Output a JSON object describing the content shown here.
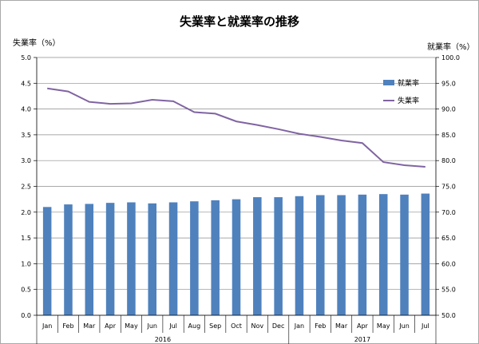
{
  "chart_data": {
    "type": "bar+line",
    "title": "失業率と就業率の推移",
    "left_axis_label": "失業率（%）",
    "right_axis_label": "就業率（%）",
    "categories": [
      "Jan",
      "Feb",
      "Mar",
      "Apr",
      "May",
      "Jun",
      "Jul",
      "Aug",
      "Sep",
      "Oct",
      "Nov",
      "Dec",
      "Jan",
      "Feb",
      "Mar",
      "Apr",
      "May",
      "Jun",
      "Jul"
    ],
    "year_groups": [
      {
        "label": "2016",
        "count": 12
      },
      {
        "label": "2017",
        "count": 7
      }
    ],
    "left_ylim": [
      0,
      5
    ],
    "left_yticks": [
      "0.0",
      "0.5",
      "1.0",
      "1.5",
      "2.0",
      "2.5",
      "3.0",
      "3.5",
      "4.0",
      "4.5",
      "5.0"
    ],
    "right_ylim": [
      50,
      100
    ],
    "right_yticks": [
      "50.0",
      "55.0",
      "60.0",
      "65.0",
      "70.0",
      "75.0",
      "80.0",
      "85.0",
      "90.0",
      "95.0",
      "100.0"
    ],
    "series": [
      {
        "name": "就業率",
        "type": "bar",
        "axis": "right",
        "color": "#4f81bd",
        "values": [
          71.0,
          71.5,
          71.6,
          71.8,
          71.9,
          71.7,
          71.9,
          72.1,
          72.3,
          72.5,
          72.9,
          72.9,
          73.1,
          73.3,
          73.3,
          73.4,
          73.5,
          73.4,
          73.6
        ]
      },
      {
        "name": "失業率",
        "type": "line",
        "axis": "left",
        "color": "#8064a2",
        "values": [
          4.4,
          4.34,
          4.14,
          4.1,
          4.11,
          4.18,
          4.15,
          3.94,
          3.91,
          3.76,
          3.69,
          3.61,
          3.52,
          3.46,
          3.39,
          3.34,
          2.97,
          2.91,
          2.88
        ]
      }
    ],
    "legend_position": "right, inside plot"
  }
}
